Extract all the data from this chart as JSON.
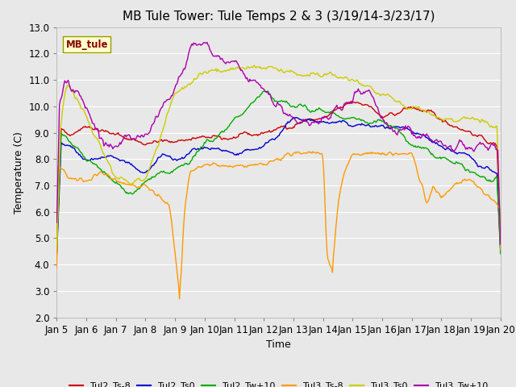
{
  "title": "MB Tule Tower: Tule Temps 2 & 3 (3/19/14-3/23/17)",
  "xlabel": "Time",
  "ylabel": "Temperature (C)",
  "ylim": [
    2.0,
    13.0
  ],
  "yticks": [
    2.0,
    3.0,
    4.0,
    5.0,
    6.0,
    7.0,
    8.0,
    9.0,
    10.0,
    11.0,
    12.0,
    13.0
  ],
  "xtick_labels": [
    "Jan 5",
    "Jan 6",
    "Jan 7",
    "Jan 8",
    "Jan 9",
    "Jan 10",
    "Jan 11",
    "Jan 12",
    "Jan 13",
    "Jan 14",
    "Jan 15",
    "Jan 16",
    "Jan 17",
    "Jan 18",
    "Jan 19",
    "Jan 20"
  ],
  "series_colors": {
    "Tul2_Ts-8": "#cc0000",
    "Tul2_Ts0": "#0000cc",
    "Tul2_Tw+10": "#00aa00",
    "Tul3_Ts-8": "#ff9900",
    "Tul3_Ts0": "#cccc00",
    "Tul3_Tw+10": "#aa00aa"
  },
  "legend_label": "MB_tule",
  "background_color": "#e8e8e8",
  "title_fontsize": 11,
  "axis_fontsize": 9,
  "tick_fontsize": 8.5
}
